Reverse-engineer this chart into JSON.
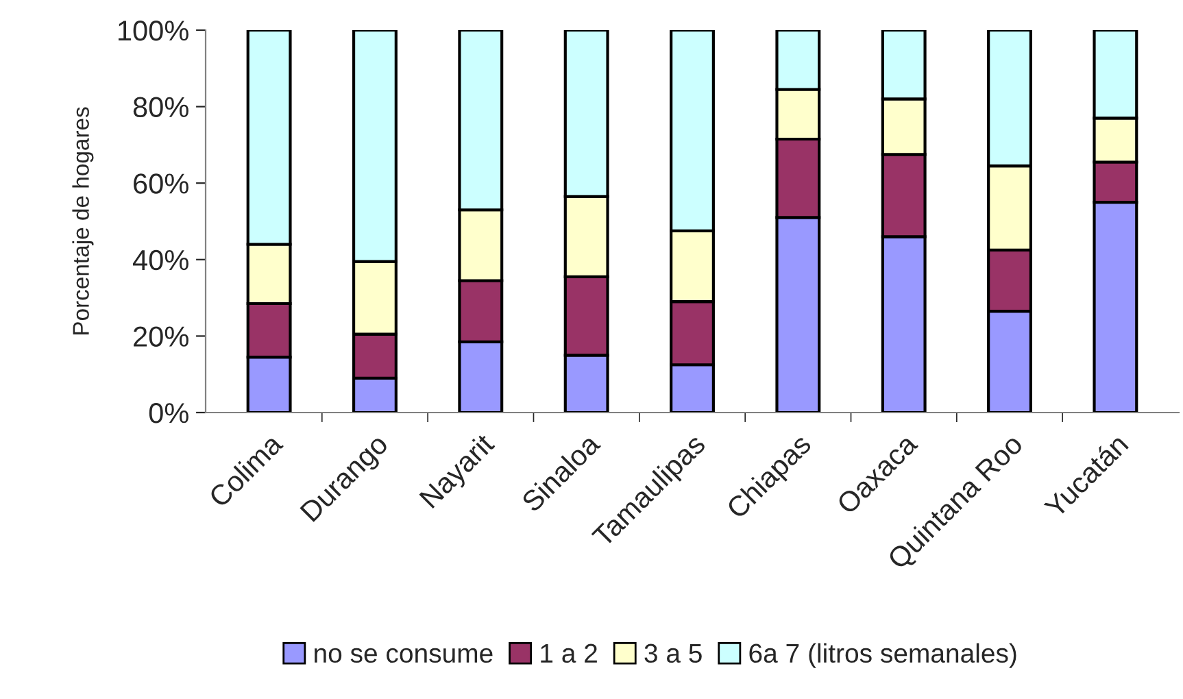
{
  "chart_data": {
    "type": "bar",
    "stacked": true,
    "ylabel": "Porcentaje de hogares",
    "categories": [
      "Colima",
      "Durango",
      "Nayarit",
      "Sinaloa",
      "Tamaulipas",
      "Chiapas",
      "Oaxaca",
      "Quintana Roo",
      "Yucatán"
    ],
    "series": [
      {
        "name": "no se consume",
        "color": "#9999ff",
        "values": [
          14.5,
          9,
          18.5,
          15,
          12.5,
          51,
          46,
          26.5,
          55
        ]
      },
      {
        "name": "1 a 2",
        "color": "#993366",
        "values": [
          14,
          11.5,
          16,
          20.5,
          16.5,
          20.5,
          21.5,
          16,
          10.5
        ]
      },
      {
        "name": "3 a 5",
        "color": "#ffffcc",
        "values": [
          15.5,
          19,
          18.5,
          21,
          18.5,
          13,
          14.5,
          22,
          11.5
        ]
      },
      {
        "name": "6a 7 (litros semanales)",
        "color": "#ccffff",
        "values": [
          56,
          60.5,
          47,
          43.5,
          52.5,
          15.5,
          18,
          35.5,
          23
        ]
      }
    ],
    "ylim": [
      0,
      100
    ],
    "yticks": [
      {
        "value": 0,
        "label": "0%"
      },
      {
        "value": 20,
        "label": "20%"
      },
      {
        "value": 40,
        "label": "40%"
      },
      {
        "value": 60,
        "label": "60%"
      },
      {
        "value": 80,
        "label": "80%"
      },
      {
        "value": 100,
        "label": "100%"
      }
    ],
    "grid": false,
    "legend": "bottom"
  }
}
